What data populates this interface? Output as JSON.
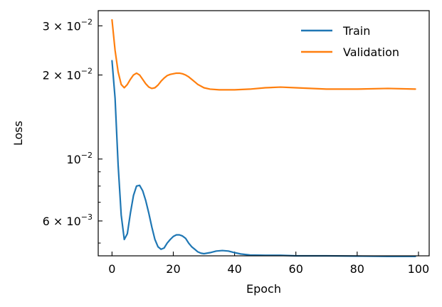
{
  "chart_data": {
    "type": "line",
    "xlabel": "Epoch",
    "ylabel": "Loss",
    "xlim": [
      -4.5,
      103.5
    ],
    "ylim": [
      0.0045,
      0.034
    ],
    "yscale": "log",
    "grid": false,
    "legend_position": "top-right",
    "x_ticks": [
      0,
      20,
      40,
      60,
      80,
      100
    ],
    "x_tick_labels": [
      "0",
      "20",
      "40",
      "60",
      "80",
      "100"
    ],
    "y_ticks": [
      0.03,
      0.02,
      0.01,
      0.006
    ],
    "y_tick_labels": [
      {
        "mantissa": "3",
        "times": "×",
        "base": "10",
        "exp": "−2"
      },
      {
        "mantissa": "2",
        "times": "×",
        "base": "10",
        "exp": "−2"
      },
      {
        "mantissa": "",
        "times": "",
        "base": "10",
        "exp": "−2"
      },
      {
        "mantissa": "6",
        "times": "×",
        "base": "10",
        "exp": "−3"
      }
    ],
    "y_minor_ticks": [
      0.004,
      0.005,
      0.007,
      0.008,
      0.009
    ],
    "series": [
      {
        "name": "Train",
        "color": "#1f77b4",
        "x": [
          0,
          1,
          2,
          3,
          4,
          5,
          6,
          7,
          8,
          9,
          10,
          11,
          12,
          13,
          14,
          15,
          16,
          17,
          18,
          19,
          20,
          21,
          22,
          23,
          24,
          25,
          26,
          27,
          28,
          29,
          30,
          32,
          34,
          36,
          38,
          40,
          42,
          45,
          50,
          55,
          60,
          70,
          80,
          90,
          99
        ],
        "y": [
          0.0225,
          0.0165,
          0.0095,
          0.0063,
          0.00515,
          0.0054,
          0.0064,
          0.0074,
          0.008,
          0.00805,
          0.0077,
          0.0071,
          0.0064,
          0.0057,
          0.00515,
          0.00485,
          0.00475,
          0.0048,
          0.005,
          0.00515,
          0.00528,
          0.00535,
          0.00535,
          0.0053,
          0.0052,
          0.005,
          0.00485,
          0.00475,
          0.00465,
          0.0046,
          0.00458,
          0.00462,
          0.00468,
          0.0047,
          0.00468,
          0.00462,
          0.00457,
          0.00453,
          0.00452,
          0.00452,
          0.0045,
          0.0045,
          0.00449,
          0.00448,
          0.00448
        ]
      },
      {
        "name": "Validation",
        "color": "#ff7f0e",
        "x": [
          0,
          1,
          2,
          3,
          4,
          5,
          6,
          7,
          8,
          9,
          10,
          11,
          12,
          13,
          14,
          15,
          16,
          17,
          18,
          19,
          20,
          21,
          22,
          23,
          24,
          25,
          26,
          27,
          28,
          30,
          32,
          35,
          40,
          45,
          50,
          55,
          60,
          70,
          80,
          90,
          99
        ],
        "y": [
          0.0315,
          0.0245,
          0.0205,
          0.0185,
          0.018,
          0.0185,
          0.0193,
          0.02,
          0.0203,
          0.02,
          0.0193,
          0.0186,
          0.0181,
          0.0179,
          0.018,
          0.0184,
          0.019,
          0.0195,
          0.0199,
          0.0201,
          0.0202,
          0.0203,
          0.0203,
          0.0202,
          0.02,
          0.0197,
          0.0193,
          0.0189,
          0.0185,
          0.018,
          0.0178,
          0.0177,
          0.0177,
          0.0178,
          0.018,
          0.0181,
          0.018,
          0.0178,
          0.0178,
          0.0179,
          0.0178
        ]
      }
    ]
  }
}
